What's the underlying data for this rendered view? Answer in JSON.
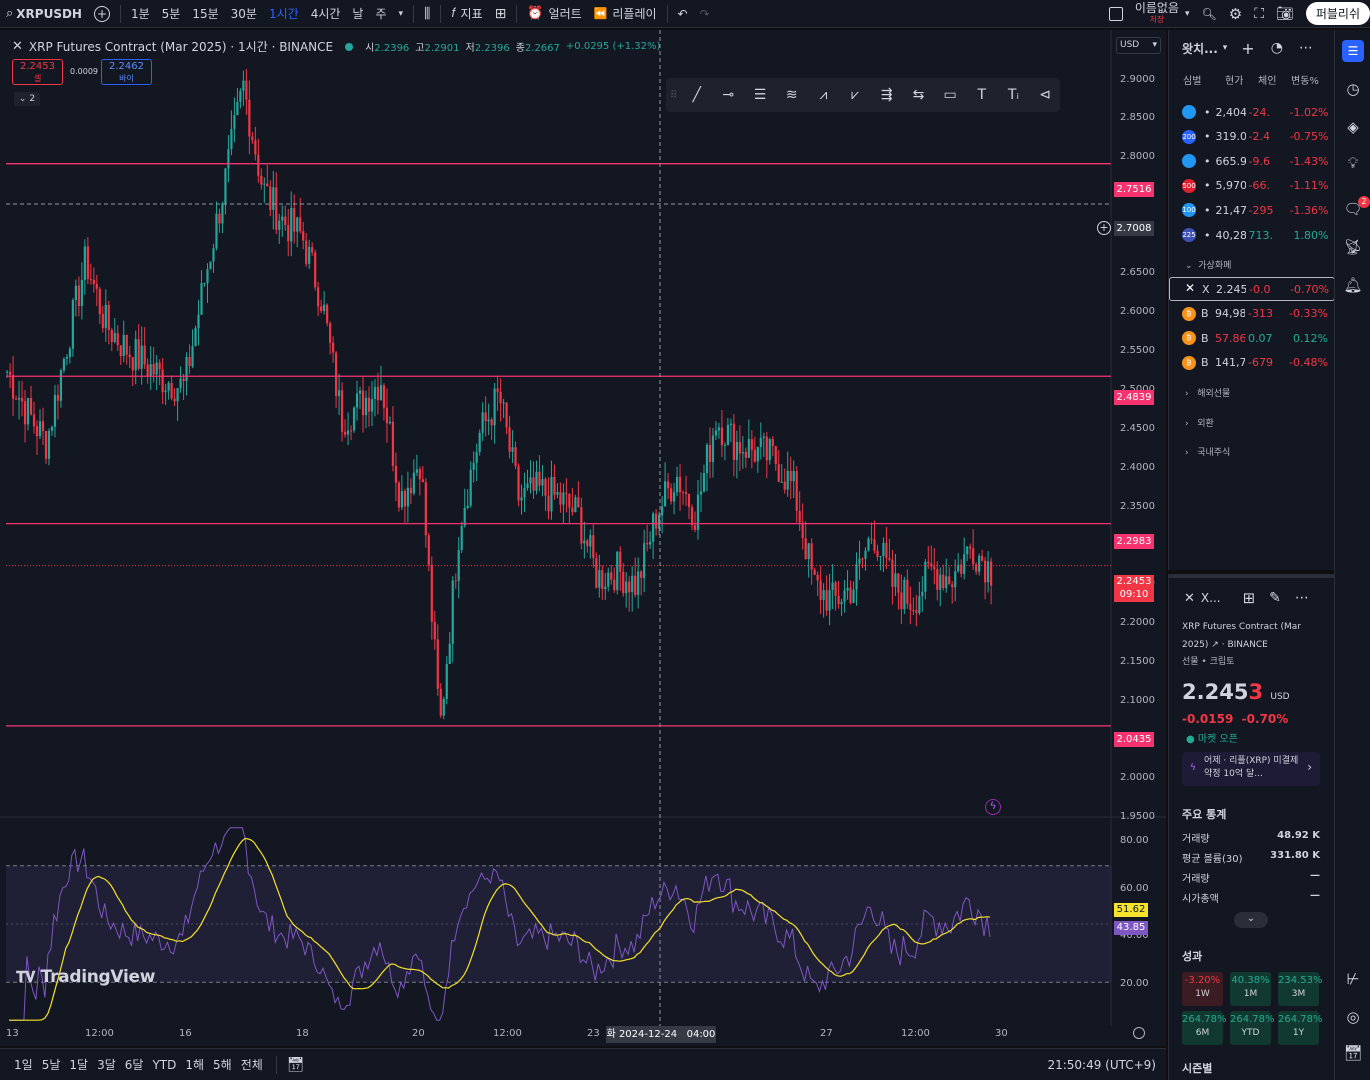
{
  "toolbar": {
    "symbol": "XRPUSDH",
    "intervals": [
      "1분",
      "5분",
      "15분",
      "30분",
      "1시간",
      "4시간",
      "날",
      "주"
    ],
    "active_interval": "1시간",
    "indicators": "지표",
    "alert": "얼러트",
    "replay": "리플레이",
    "layout_name": "이름없음",
    "layout_sub": "저장",
    "publish": "퍼블리쉬"
  },
  "legend": {
    "title": "XRP Futures Contract (Mar 2025) · 1시간 · BINANCE",
    "o_label": "시",
    "o_val": "2.2396",
    "h_label": "고",
    "h_val": "2.2901",
    "l_label": "저",
    "l_val": "2.2396",
    "c_label": "종",
    "c_val": "2.2667",
    "change": "+0.0295 (+1.32%)",
    "sell_price": "2.2453",
    "sell_label": "셀",
    "spread": "0.0009",
    "buy_price": "2.2462",
    "buy_label": "바이",
    "collapse_count": "2"
  },
  "price_axis": {
    "currency": "USD",
    "ticks": [
      "2.9000",
      "2.8500",
      "2.8000",
      "2.6500",
      "2.6000",
      "2.5500",
      "2.5000",
      "2.4500",
      "2.4000",
      "2.3500",
      "2.2500",
      "2.2000",
      "2.1500",
      "2.1000",
      "2.0000",
      "1.9500"
    ],
    "hline_labels": [
      "2.7516",
      "2.4839",
      "2.2983",
      "2.0435"
    ],
    "crosshair_label": "2.7008",
    "last_price": "2.2453",
    "countdown": "09:10"
  },
  "rsi_axis": {
    "ticks": [
      "80.00",
      "60.00",
      "40.00",
      "20.00"
    ],
    "rsi_value": "51.62",
    "ma_value": "43.85"
  },
  "time_axis": {
    "ticks": [
      "13",
      "12:00",
      "16",
      "18",
      "20",
      "12:00",
      "23",
      "27",
      "12:00",
      "30"
    ],
    "crosshair": "화 2024-12-24   04:00"
  },
  "bottom": {
    "ranges": [
      "1일",
      "5날",
      "1달",
      "3달",
      "6달",
      "YTD",
      "1해",
      "5해",
      "전체"
    ],
    "clock": "21:50:49 (UTC+9)"
  },
  "watermark": "TradingView",
  "watchlist": {
    "title": "왓치...",
    "columns": [
      "심벌",
      "현가",
      "체인지",
      "변동%"
    ],
    "rows_top": [
      {
        "icon": "",
        "color": "#2196f3",
        "last": "2,404",
        "chg": "-24.",
        "pct": "-1.02%",
        "dir": "neg"
      },
      {
        "icon": "200",
        "color": "#2962ff",
        "last": "319.0",
        "chg": "-2.4",
        "pct": "-0.75%",
        "dir": "neg"
      },
      {
        "icon": "",
        "color": "#2196f3",
        "last": "665.9",
        "chg": "-9.6",
        "pct": "-1.43%",
        "dir": "neg"
      },
      {
        "icon": "500",
        "color": "#e0202e",
        "last": "5,970",
        "chg": "-66.",
        "pct": "-1.11%",
        "dir": "neg"
      },
      {
        "icon": "100",
        "color": "#2196f3",
        "last": "21,47",
        "chg": "-295",
        "pct": "-1.36%",
        "dir": "neg"
      },
      {
        "icon": "225",
        "color": "#3f51b5",
        "last": "40,28",
        "chg": "713.",
        "pct": "1.80%",
        "dir": "pos"
      }
    ],
    "section_crypto": "가상화폐",
    "rows_crypto": [
      {
        "sym": "X",
        "last": "2.245",
        "chg": "-0.0",
        "pct": "-0.70%",
        "dir": "neg",
        "selected": true
      },
      {
        "sym": "B",
        "last": "94,98",
        "chg": "-313",
        "pct": "-0.33%",
        "dir": "neg"
      },
      {
        "sym": "B",
        "last": "57.86",
        "chg": "0.07",
        "pct": "0.12%",
        "dir": "pos"
      },
      {
        "sym": "B",
        "last": "141,7",
        "chg": "-679",
        "pct": "-0.48%",
        "dir": "neg"
      }
    ],
    "sections": [
      "해외선물",
      "외환",
      "국내주식"
    ]
  },
  "detail": {
    "symbol_short": "X...",
    "name_line1": "XRP Futures Contract (Mar",
    "name_line2": "2025)",
    "exchange": "· BINANCE",
    "category": "선물 • 크립토",
    "price_main": "2.245",
    "price_last": "3",
    "currency": "USD",
    "change": "-0.0159",
    "change_pct": "-0.70%",
    "market_status": "마켓 오픈",
    "news": "어제 · 리플(XRP) 미결제 약정 10억 달...",
    "stats_title": "주요 통계",
    "stats": [
      {
        "label": "거래량",
        "value": "48.92 K"
      },
      {
        "label": "평균 볼륨(30)",
        "value": "331.80 K"
      },
      {
        "label": "거래량",
        "value": "—"
      },
      {
        "label": "시가총액",
        "value": "—"
      }
    ],
    "perf_title": "성과",
    "perf": [
      {
        "value": "-3.20%",
        "period": "1W",
        "dir": "neg"
      },
      {
        "value": "40.38%",
        "period": "1M",
        "dir": "pos"
      },
      {
        "value": "234.53%",
        "period": "3M",
        "dir": "pos"
      },
      {
        "value": "264.78%",
        "period": "6M",
        "dir": "pos"
      },
      {
        "value": "264.78%",
        "period": "YTD",
        "dir": "pos"
      },
      {
        "value": "264.78%",
        "period": "1Y",
        "dir": "pos"
      }
    ],
    "seasonal": "시즌별"
  },
  "notification_count": "2",
  "colors": {
    "up": "#26a69a",
    "down": "#f23645",
    "hline": "#f7336f",
    "rsi": "#7e57c2",
    "rsi_ma": "#f5e22b"
  },
  "chart_data": {
    "type": "candlestick",
    "series": [
      {
        "name": "XRP Futures Contract (Mar 2025)",
        "values": [
          2.49,
          2.44,
          2.4,
          2.52,
          2.63,
          2.55,
          2.52,
          2.5,
          2.48,
          2.47,
          2.6,
          2.72,
          2.85,
          2.72,
          2.68,
          2.66,
          2.58,
          2.43,
          2.45,
          2.48,
          2.33,
          2.38,
          2.04,
          2.3,
          2.41,
          2.46,
          2.33,
          2.34,
          2.33,
          2.31,
          2.23,
          2.24,
          2.22,
          2.31,
          2.36,
          2.31,
          2.43,
          2.4,
          2.39,
          2.38,
          2.34,
          2.22,
          2.2,
          2.22,
          2.29,
          2.22,
          2.2,
          2.24,
          2.23,
          2.27,
          2.24
        ]
      }
    ],
    "hlines": [
      2.7516,
      2.4839,
      2.2983,
      2.0435
    ],
    "ylim": [
      1.93,
      2.92
    ],
    "rsi": {
      "ylim": [
        15,
        85
      ],
      "bands": [
        30,
        70
      ]
    }
  }
}
